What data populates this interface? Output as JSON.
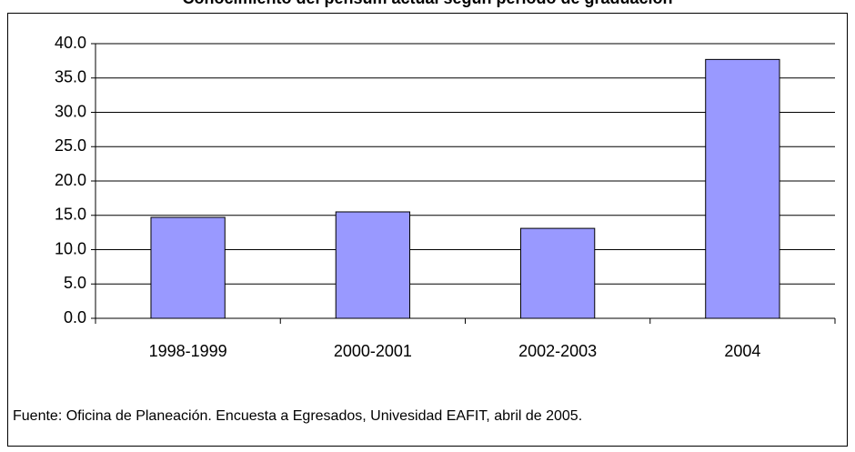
{
  "chart_data": {
    "type": "bar",
    "title": "Conocimiento del pensum actual según período de graduación",
    "categories": [
      "1998-1999",
      "2000-2001",
      "2002-2003",
      "2004"
    ],
    "values": [
      14.7,
      15.5,
      13.1,
      37.7
    ],
    "color": "#9999ff",
    "ylim": [
      0,
      40
    ],
    "yticks": [
      {
        "value": 0,
        "label": "0.0"
      },
      {
        "value": 5,
        "label": "5.0"
      },
      {
        "value": 10,
        "label": "10.0"
      },
      {
        "value": 15,
        "label": "15.0"
      },
      {
        "value": 20,
        "label": "20.0"
      },
      {
        "value": 25,
        "label": "25.0"
      },
      {
        "value": 30,
        "label": "30.0"
      },
      {
        "value": 35,
        "label": "35.0"
      },
      {
        "value": 40,
        "label": "40.0"
      }
    ],
    "grid": true,
    "source": "Fuente: Oficina de Planeación. Encuesta a Egresados, Univesidad EAFIT, abril de 2005."
  }
}
